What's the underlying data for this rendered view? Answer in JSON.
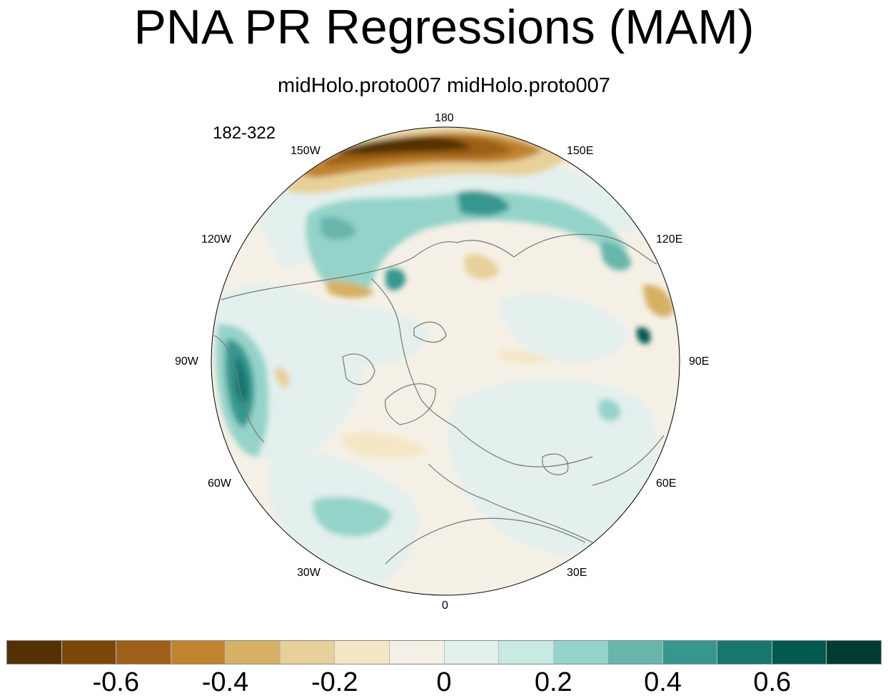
{
  "title": "PNA PR Regressions (MAM)",
  "subtitle": "midHolo.proto007  midHolo.proto007",
  "years_label": "182-322",
  "longitude_labels": {
    "lon_180": "180",
    "lon_150E": "150E",
    "lon_120E": "120E",
    "lon_90E": "90E",
    "lon_60E": "60E",
    "lon_30E": "30E",
    "lon_0": "0",
    "lon_30W": "30W",
    "lon_60W": "60W",
    "lon_90W": "90W",
    "lon_120W": "120W",
    "lon_150W": "150W"
  },
  "colorbar": {
    "colors": [
      "#543005",
      "#7c4709",
      "#9e6019",
      "#c0842f",
      "#d6b064",
      "#e8d09a",
      "#f5e7c6",
      "#f5f0e6",
      "#e3f0ee",
      "#c7eae3",
      "#94d3c9",
      "#66b6ac",
      "#35978f",
      "#16776f",
      "#01594f",
      "#003c30"
    ],
    "tick_labels": [
      "-0.6",
      "-0.4",
      "-0.2",
      "0",
      "0.2",
      "0.4",
      "0.6"
    ]
  },
  "legend_scale": {
    "min": -0.8,
    "max": 0.8,
    "interval": 0.1
  }
}
